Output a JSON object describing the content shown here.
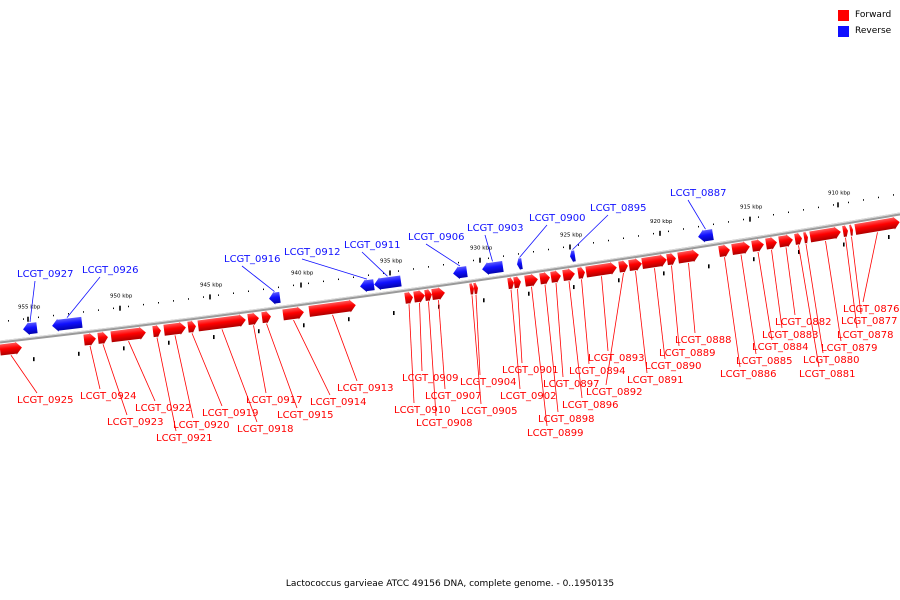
{
  "caption": "Lactococcus garvieae ATCC 49156 DNA, complete genome. - 0..1950135",
  "legend": [
    {
      "label": "Forward",
      "color": "#ff0000"
    },
    {
      "label": "Reverse",
      "color": "#1010ff"
    }
  ],
  "colors": {
    "forward": "#ff0000",
    "reverse": "#1010ff",
    "backbone": "#9a9a9a"
  },
  "ticks": [
    {
      "pos_kbp": 955,
      "label": "955 kbp"
    },
    {
      "pos_kbp": 950,
      "label": "950 kbp"
    },
    {
      "pos_kbp": 945,
      "label": "945 kbp"
    },
    {
      "pos_kbp": 940,
      "label": "940 kbp"
    },
    {
      "pos_kbp": 935,
      "label": "935 kbp"
    },
    {
      "pos_kbp": 930,
      "label": "930 kbp"
    },
    {
      "pos_kbp": 925,
      "label": "925 kbp"
    },
    {
      "pos_kbp": 920,
      "label": "920 kbp"
    },
    {
      "pos_kbp": 915,
      "label": "915 kbp"
    },
    {
      "pos_kbp": 910,
      "label": "910 kbp"
    }
  ],
  "genes": [
    {
      "locus": "LCGT_0927",
      "strand": "reverse"
    },
    {
      "locus": "LCGT_0926",
      "strand": "reverse"
    },
    {
      "locus": "LCGT_0916",
      "strand": "reverse"
    },
    {
      "locus": "LCGT_0912",
      "strand": "reverse"
    },
    {
      "locus": "LCGT_0911",
      "strand": "reverse"
    },
    {
      "locus": "LCGT_0906",
      "strand": "reverse"
    },
    {
      "locus": "LCGT_0903",
      "strand": "reverse"
    },
    {
      "locus": "LCGT_0900",
      "strand": "reverse"
    },
    {
      "locus": "LCGT_0895",
      "strand": "reverse"
    },
    {
      "locus": "LCGT_0887",
      "strand": "reverse"
    },
    {
      "locus": "LCGT_0925",
      "strand": "forward"
    },
    {
      "locus": "LCGT_0924",
      "strand": "forward"
    },
    {
      "locus": "LCGT_0923",
      "strand": "forward"
    },
    {
      "locus": "LCGT_0922",
      "strand": "forward"
    },
    {
      "locus": "LCGT_0921",
      "strand": "forward"
    },
    {
      "locus": "LCGT_0920",
      "strand": "forward"
    },
    {
      "locus": "LCGT_0919",
      "strand": "forward"
    },
    {
      "locus": "LCGT_0918",
      "strand": "forward"
    },
    {
      "locus": "LCGT_0917",
      "strand": "forward"
    },
    {
      "locus": "LCGT_0915",
      "strand": "forward"
    },
    {
      "locus": "LCGT_0914",
      "strand": "forward"
    },
    {
      "locus": "LCGT_0913",
      "strand": "forward"
    },
    {
      "locus": "LCGT_0910",
      "strand": "forward"
    },
    {
      "locus": "LCGT_0909",
      "strand": "forward"
    },
    {
      "locus": "LCGT_0908",
      "strand": "forward"
    },
    {
      "locus": "LCGT_0907",
      "strand": "forward"
    },
    {
      "locus": "LCGT_0905",
      "strand": "forward"
    },
    {
      "locus": "LCGT_0904",
      "strand": "forward"
    },
    {
      "locus": "LCGT_0902",
      "strand": "forward"
    },
    {
      "locus": "LCGT_0901",
      "strand": "forward"
    },
    {
      "locus": "LCGT_0899",
      "strand": "forward"
    },
    {
      "locus": "LCGT_0898",
      "strand": "forward"
    },
    {
      "locus": "LCGT_0897",
      "strand": "forward"
    },
    {
      "locus": "LCGT_0896",
      "strand": "forward"
    },
    {
      "locus": "LCGT_0894",
      "strand": "forward"
    },
    {
      "locus": "LCGT_0893",
      "strand": "forward"
    },
    {
      "locus": "LCGT_0892",
      "strand": "forward"
    },
    {
      "locus": "LCGT_0891",
      "strand": "forward"
    },
    {
      "locus": "LCGT_0890",
      "strand": "forward"
    },
    {
      "locus": "LCGT_0889",
      "strand": "forward"
    },
    {
      "locus": "LCGT_0888",
      "strand": "forward"
    },
    {
      "locus": "LCGT_0886",
      "strand": "forward"
    },
    {
      "locus": "LCGT_0885",
      "strand": "forward"
    },
    {
      "locus": "LCGT_0884",
      "strand": "forward"
    },
    {
      "locus": "LCGT_0883",
      "strand": "forward"
    },
    {
      "locus": "LCGT_0882",
      "strand": "forward"
    },
    {
      "locus": "LCGT_0881",
      "strand": "forward"
    },
    {
      "locus": "LCGT_0880",
      "strand": "forward"
    },
    {
      "locus": "LCGT_0879",
      "strand": "forward"
    },
    {
      "locus": "LCGT_0878",
      "strand": "forward"
    },
    {
      "locus": "LCGT_0877",
      "strand": "forward"
    },
    {
      "locus": "LCGT_0876",
      "strand": "forward"
    }
  ]
}
